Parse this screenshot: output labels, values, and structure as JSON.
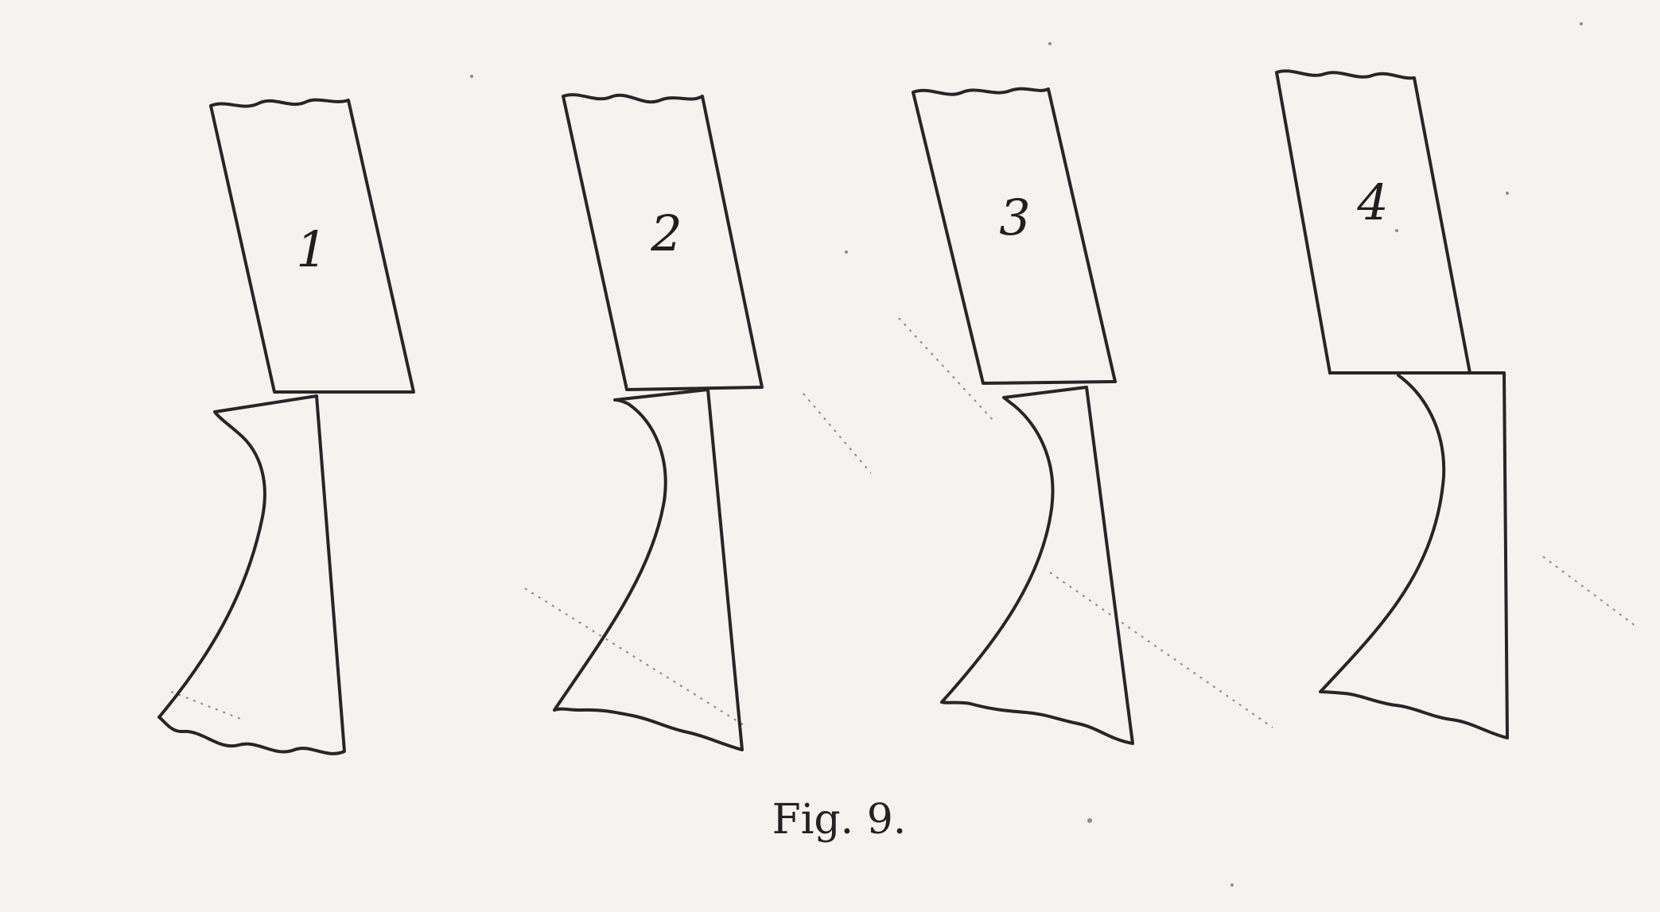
{
  "figure": {
    "caption": "Fig. 9.",
    "tools": [
      {
        "label": "1"
      },
      {
        "label": "2"
      },
      {
        "label": "3"
      },
      {
        "label": "4"
      }
    ]
  }
}
